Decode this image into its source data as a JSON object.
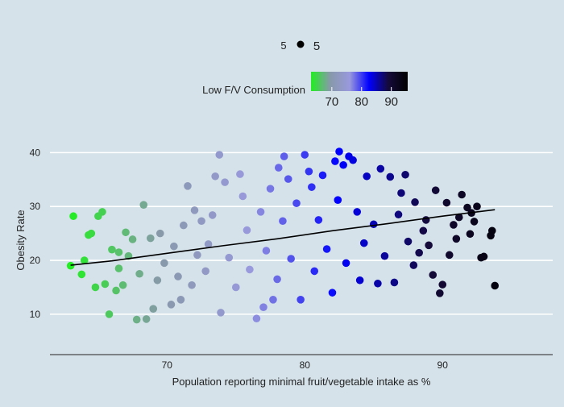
{
  "chart_data": {
    "type": "scatter",
    "title": "",
    "xlabel": "Population reporting minimal fruit/vegetable intake as %",
    "ylabel": "Obesity Rate",
    "xlim": [
      61.5,
      98
    ],
    "ylim": [
      2.5,
      42
    ],
    "x_ticks": [
      "70",
      "80",
      "90"
    ],
    "y_ticks": [
      "10",
      "20",
      "30",
      "40"
    ],
    "grid": "horizontal",
    "size_legend": {
      "label_left": "5",
      "label_right": "5"
    },
    "color_legend": {
      "title": "Low F/V Consumption",
      "ticks": [
        "70",
        "80",
        "90"
      ],
      "range": [
        63,
        95.5
      ],
      "colors": [
        "#22ee22",
        "#8899aa",
        "#9999dd",
        "#0000ff",
        "#150a3a",
        "#000000"
      ]
    },
    "trend": [
      [
        63,
        19.1
      ],
      [
        66,
        19.9
      ],
      [
        70,
        21.3
      ],
      [
        74,
        22.7
      ],
      [
        78,
        24.0
      ],
      [
        82,
        25.5
      ],
      [
        86,
        26.8
      ],
      [
        90,
        28.2
      ],
      [
        93.8,
        29.4
      ]
    ],
    "points": [
      [
        63.2,
        28.2
      ],
      [
        63.0,
        19.0
      ],
      [
        63.8,
        17.4
      ],
      [
        64.0,
        20.0
      ],
      [
        64.3,
        24.7
      ],
      [
        64.5,
        25.0
      ],
      [
        64.8,
        15.0
      ],
      [
        65.0,
        28.2
      ],
      [
        65.3,
        29.0
      ],
      [
        65.5,
        15.6
      ],
      [
        65.8,
        10.0
      ],
      [
        66.0,
        22.0
      ],
      [
        66.3,
        14.4
      ],
      [
        66.5,
        18.5
      ],
      [
        66.8,
        15.4
      ],
      [
        67.0,
        25.2
      ],
      [
        67.5,
        23.9
      ],
      [
        67.8,
        9.0
      ],
      [
        68.3,
        30.3
      ],
      [
        68.5,
        9.1
      ],
      [
        69.0,
        11.0
      ],
      [
        69.5,
        25.0
      ],
      [
        70.3,
        11.8
      ],
      [
        71.0,
        12.7
      ],
      [
        71.5,
        33.8
      ],
      [
        72.0,
        29.3
      ],
      [
        72.5,
        27.3
      ],
      [
        73.0,
        23.0
      ],
      [
        73.5,
        35.6
      ],
      [
        73.8,
        39.6
      ],
      [
        73.9,
        10.3
      ],
      [
        74.2,
        34.5
      ],
      [
        75.3,
        36.0
      ],
      [
        75.5,
        31.9
      ],
      [
        76.5,
        9.2
      ],
      [
        77.0,
        11.3
      ],
      [
        77.5,
        33.3
      ],
      [
        77.7,
        12.7
      ],
      [
        78.1,
        37.2
      ],
      [
        78.5,
        39.3
      ],
      [
        78.8,
        35.1
      ],
      [
        79.7,
        12.7
      ],
      [
        80.0,
        39.6
      ],
      [
        80.3,
        36.5
      ],
      [
        80.5,
        33.6
      ],
      [
        81.3,
        35.8
      ],
      [
        82.0,
        14.0
      ],
      [
        82.2,
        38.4
      ],
      [
        82.5,
        40.2
      ],
      [
        82.8,
        37.7
      ],
      [
        83.2,
        39.3
      ],
      [
        83.5,
        38.6
      ],
      [
        84.0,
        16.3
      ],
      [
        84.5,
        35.6
      ],
      [
        85.3,
        15.7
      ],
      [
        85.5,
        37.0
      ],
      [
        86.2,
        35.5
      ],
      [
        86.5,
        15.9
      ],
      [
        87.0,
        32.5
      ],
      [
        87.3,
        35.9
      ],
      [
        88.3,
        21.4
      ],
      [
        88.8,
        27.5
      ],
      [
        89.3,
        17.3
      ],
      [
        89.5,
        33.0
      ],
      [
        89.8,
        13.9
      ],
      [
        90.0,
        15.5
      ],
      [
        90.3,
        30.7
      ],
      [
        90.5,
        21.0
      ],
      [
        90.8,
        26.6
      ],
      [
        91.0,
        24.0
      ],
      [
        91.4,
        32.2
      ],
      [
        91.2,
        28.0
      ],
      [
        91.8,
        29.8
      ],
      [
        92.0,
        24.9
      ],
      [
        92.3,
        27.2
      ],
      [
        92.5,
        30.0
      ],
      [
        92.8,
        20.5
      ],
      [
        93.0,
        20.7
      ],
      [
        93.5,
        24.6
      ],
      [
        93.8,
        15.3
      ],
      [
        93.6,
        25.5
      ],
      [
        92.1,
        28.8
      ],
      [
        66.5,
        21.5
      ],
      [
        67.2,
        20.8
      ],
      [
        68.0,
        17.5
      ],
      [
        68.8,
        24.1
      ],
      [
        69.3,
        16.3
      ],
      [
        69.8,
        19.5
      ],
      [
        70.5,
        22.6
      ],
      [
        70.8,
        17.0
      ],
      [
        71.2,
        26.5
      ],
      [
        71.8,
        15.4
      ],
      [
        72.2,
        21.0
      ],
      [
        72.8,
        18.0
      ],
      [
        73.3,
        28.4
      ],
      [
        74.5,
        20.5
      ],
      [
        75.0,
        15.0
      ],
      [
        75.8,
        25.6
      ],
      [
        76.0,
        18.3
      ],
      [
        76.8,
        29.0
      ],
      [
        77.2,
        21.8
      ],
      [
        78.0,
        16.5
      ],
      [
        78.4,
        27.3
      ],
      [
        79.0,
        20.3
      ],
      [
        79.4,
        30.6
      ],
      [
        80.7,
        18.0
      ],
      [
        81.0,
        27.5
      ],
      [
        81.6,
        22.1
      ],
      [
        82.4,
        31.2
      ],
      [
        83.0,
        19.5
      ],
      [
        83.8,
        29.0
      ],
      [
        84.3,
        23.2
      ],
      [
        85.0,
        26.7
      ],
      [
        85.8,
        20.8
      ],
      [
        86.8,
        28.5
      ],
      [
        87.5,
        23.5
      ],
      [
        88.0,
        30.8
      ],
      [
        88.6,
        25.5
      ],
      [
        89.0,
        22.8
      ],
      [
        87.9,
        19.1
      ]
    ]
  }
}
